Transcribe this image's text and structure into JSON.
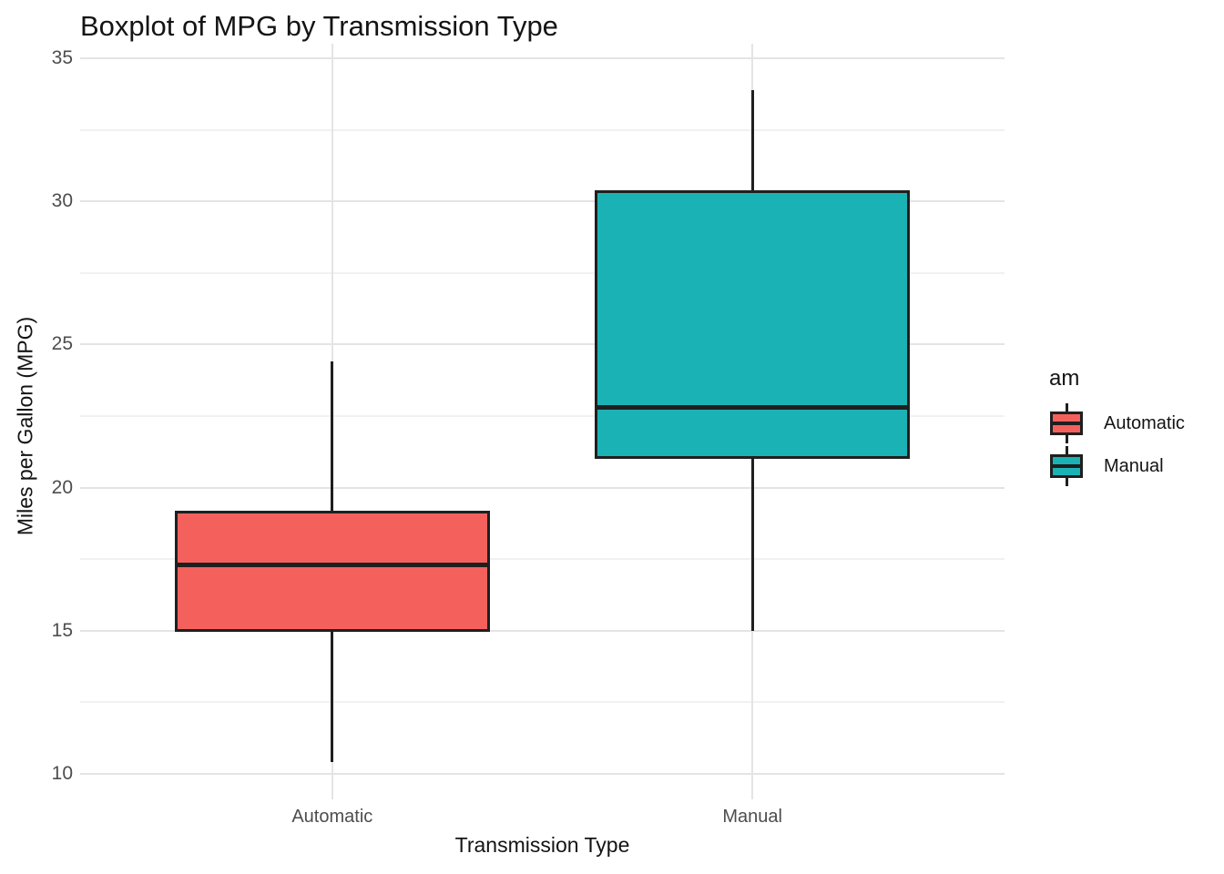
{
  "title": "Boxplot of MPG by Transmission Type",
  "axes": {
    "x": {
      "title": "Transmission Type"
    },
    "y": {
      "title": "Miles per Gallon (MPG)"
    }
  },
  "chart_data": {
    "type": "boxplot",
    "title": "Boxplot of MPG by Transmission Type",
    "xlabel": "Transmission Type",
    "ylabel": "Miles per Gallon (MPG)",
    "ylim": [
      10,
      35
    ],
    "y_major_ticks": [
      10,
      15,
      20,
      25,
      30,
      35
    ],
    "y_minor_gridlines": [
      12.5,
      17.5,
      22.5,
      27.5,
      32.5
    ],
    "categories": [
      "Automatic",
      "Manual"
    ],
    "grid": true,
    "legend": {
      "title": "am",
      "position": "right"
    },
    "background": "#FFFFFF",
    "series": [
      {
        "name": "Automatic",
        "fill": "#F4615D",
        "whisker_low": 10.4,
        "q1": 14.95,
        "median": 17.3,
        "q3": 19.2,
        "whisker_high": 24.4,
        "outliers": []
      },
      {
        "name": "Manual",
        "fill": "#1AB2B5",
        "whisker_low": 15.0,
        "q1": 21.0,
        "median": 22.8,
        "q3": 30.4,
        "whisker_high": 33.9,
        "outliers": []
      }
    ],
    "style": {
      "box_border_color": "#1F1F1F",
      "median_color": "#1F1F1F",
      "major_gridline_color": "#E4E4E4",
      "minor_gridline_color": "#F1F1F1",
      "axis_text_color": "#4D4D4D",
      "title_color": "#141414"
    }
  }
}
